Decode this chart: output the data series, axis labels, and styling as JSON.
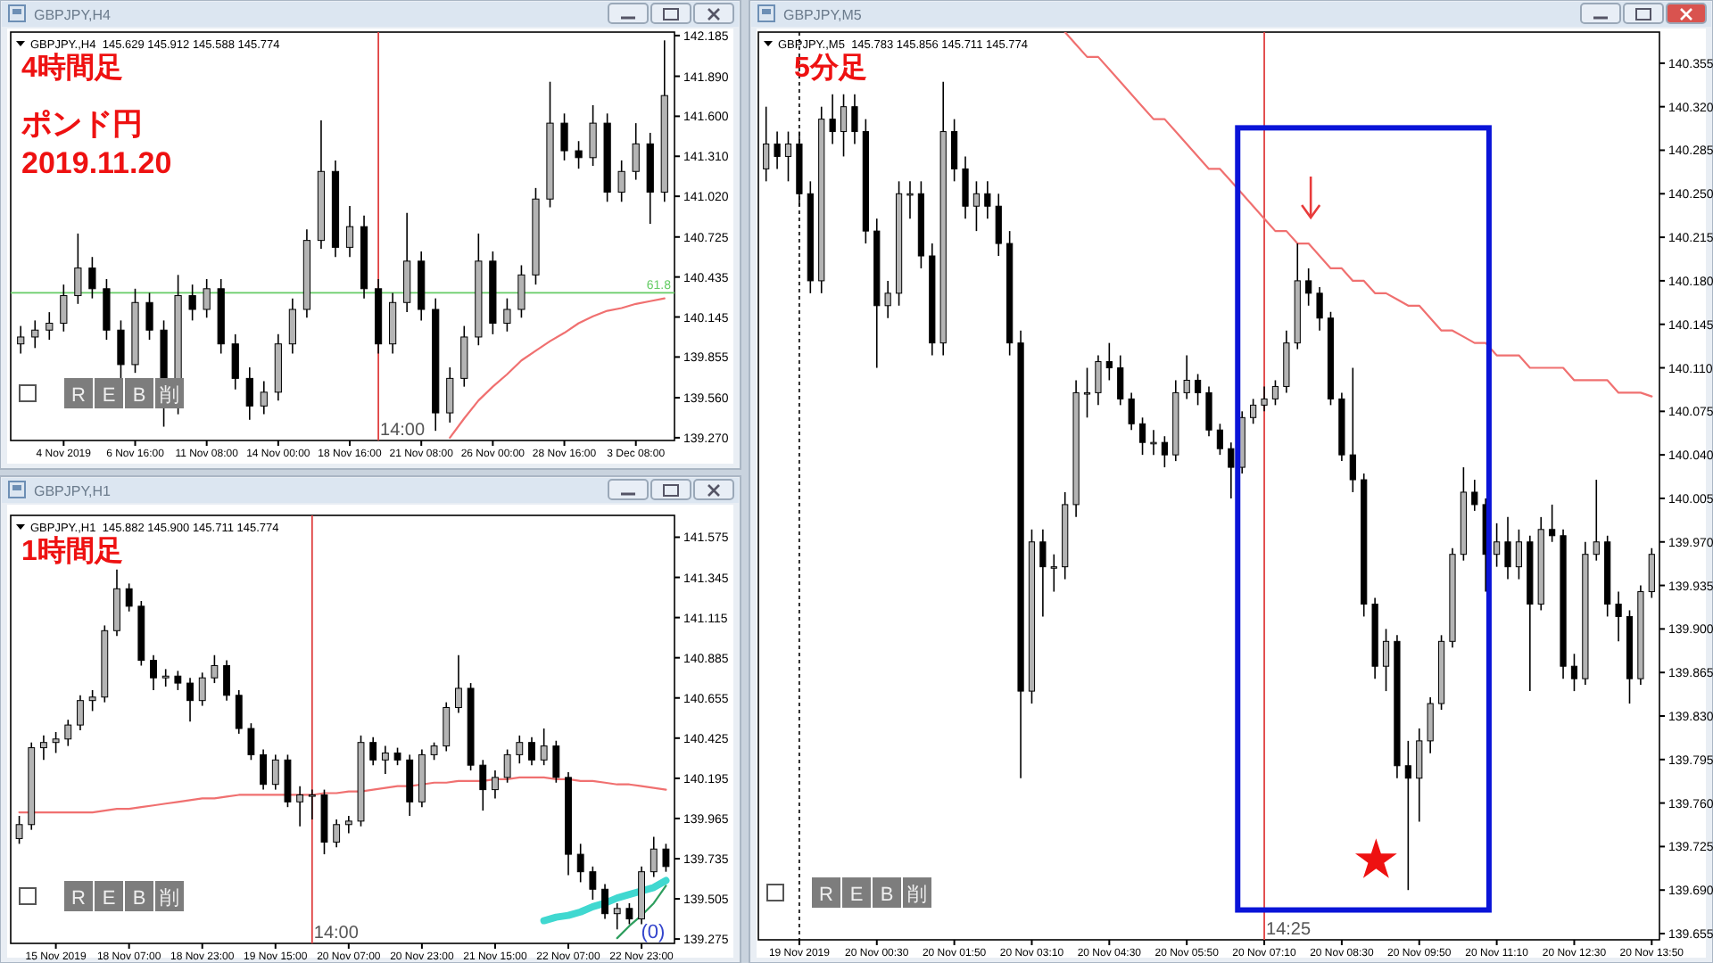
{
  "chart_data": [
    {
      "type": "candlestick",
      "title": "GBPJPY,H4",
      "subtitle": "GBPJPY.,H4  145.629 145.912 145.588 145.774",
      "ohlc": [
        [
          139.95,
          140.08,
          139.88,
          140.0
        ],
        [
          140.0,
          140.12,
          139.92,
          140.05
        ],
        [
          140.05,
          140.18,
          139.98,
          140.1
        ],
        [
          140.1,
          140.38,
          140.04,
          140.3
        ],
        [
          140.3,
          140.75,
          140.24,
          140.5
        ],
        [
          140.5,
          140.58,
          140.28,
          140.35
        ],
        [
          140.35,
          140.42,
          139.98,
          140.05
        ],
        [
          140.05,
          140.12,
          139.68,
          139.8
        ],
        [
          139.8,
          140.35,
          139.74,
          140.25
        ],
        [
          140.25,
          140.32,
          139.98,
          140.05
        ],
        [
          140.05,
          140.12,
          139.35,
          139.5
        ],
        [
          139.5,
          140.45,
          139.44,
          140.3
        ],
        [
          140.3,
          140.38,
          140.12,
          140.2
        ],
        [
          140.2,
          140.42,
          140.14,
          140.35
        ],
        [
          140.35,
          140.42,
          139.88,
          139.95
        ],
        [
          139.95,
          140.02,
          139.62,
          139.7
        ],
        [
          139.7,
          139.78,
          139.4,
          139.5
        ],
        [
          139.5,
          139.68,
          139.44,
          139.6
        ],
        [
          139.6,
          140.02,
          139.54,
          139.95
        ],
        [
          139.95,
          140.28,
          139.88,
          140.2
        ],
        [
          140.2,
          140.78,
          140.14,
          140.7
        ],
        [
          140.7,
          141.57,
          140.64,
          141.2
        ],
        [
          141.2,
          141.28,
          140.58,
          140.65
        ],
        [
          140.65,
          140.95,
          140.58,
          140.8
        ],
        [
          140.8,
          140.88,
          140.28,
          140.35
        ],
        [
          140.35,
          140.42,
          139.88,
          139.95
        ],
        [
          139.95,
          140.32,
          139.88,
          140.25
        ],
        [
          140.25,
          140.9,
          140.18,
          140.55
        ],
        [
          140.55,
          140.62,
          140.12,
          140.2
        ],
        [
          140.2,
          140.28,
          139.32,
          139.45
        ],
        [
          139.45,
          139.78,
          139.38,
          139.7
        ],
        [
          139.7,
          140.08,
          139.64,
          140.0
        ],
        [
          140.0,
          140.75,
          139.94,
          140.55
        ],
        [
          140.55,
          140.62,
          140.02,
          140.1
        ],
        [
          140.1,
          140.28,
          140.04,
          140.2
        ],
        [
          140.2,
          140.52,
          140.14,
          140.45
        ],
        [
          140.45,
          141.08,
          140.38,
          141.0
        ],
        [
          141.0,
          141.85,
          140.94,
          141.55
        ],
        [
          141.55,
          141.62,
          141.28,
          141.35
        ],
        [
          141.35,
          141.42,
          141.22,
          141.3
        ],
        [
          141.3,
          141.68,
          141.24,
          141.55
        ],
        [
          141.55,
          141.62,
          140.98,
          141.05
        ],
        [
          141.05,
          141.28,
          140.98,
          141.2
        ],
        [
          141.2,
          141.55,
          141.14,
          141.4
        ],
        [
          141.4,
          141.48,
          140.82,
          141.05
        ],
        [
          141.05,
          142.15,
          140.98,
          141.75
        ]
      ],
      "series": [
        {
          "type": "line",
          "color": "#f07070",
          "values": [
            null,
            null,
            null,
            null,
            null,
            null,
            null,
            null,
            null,
            null,
            null,
            null,
            null,
            null,
            null,
            null,
            null,
            null,
            null,
            null,
            null,
            null,
            null,
            null,
            null,
            null,
            null,
            null,
            null,
            null,
            139.27,
            139.41,
            139.54,
            139.64,
            139.73,
            139.83,
            139.9,
            139.97,
            140.03,
            140.1,
            140.15,
            140.19,
            140.21,
            140.24,
            140.26,
            140.28
          ]
        }
      ],
      "categories": [
        null,
        null,
        null,
        "4 Nov 2019",
        null,
        null,
        null,
        null,
        "6 Nov 16:00",
        null,
        null,
        null,
        null,
        "11 Nov 08:00",
        null,
        null,
        null,
        null,
        "14 Nov 00:00",
        null,
        null,
        null,
        null,
        "18 Nov 16:00",
        null,
        null,
        null,
        null,
        "21 Nov 08:00",
        null,
        null,
        null,
        null,
        "26 Nov 00:00",
        null,
        null,
        null,
        null,
        "28 Nov 16:00",
        null,
        null,
        null,
        null,
        "3 Dec 08:00",
        null,
        null
      ],
      "ylim": [
        139.25,
        142.21
      ],
      "yticks": [
        {
          "value": 139.27,
          "label": "139.270"
        },
        {
          "value": 139.56,
          "label": "139.560"
        },
        139.855,
        140.145,
        140.435,
        140.725,
        {
          "value": 141.02,
          "label": "141.020"
        },
        {
          "value": 141.31,
          "label": "141.310"
        },
        {
          "value": 141.6,
          "label": "141.600"
        },
        {
          "value": 141.89,
          "label": "141.890"
        },
        142.185
      ],
      "ref_lines": [
        {
          "axis": "y",
          "value": 140.32,
          "color": "#66cc66"
        }
      ],
      "annotations": [
        {
          "text": "61.8",
          "y": 140.32
        },
        "14:00",
        "4時間足",
        "ポンド円",
        "2019.11.20",
        "R",
        "E",
        "B",
        "削"
      ]
    },
    {
      "type": "candlestick",
      "title": "GBPJPY,H1",
      "subtitle": "GBPJPY.,H1  145.882 145.900 145.711 145.774",
      "ohlc": [
        [
          139.85,
          139.98,
          139.82,
          139.93
        ],
        [
          139.93,
          140.4,
          139.9,
          140.37
        ],
        [
          140.37,
          140.44,
          140.3,
          140.4
        ],
        [
          140.4,
          140.46,
          140.34,
          140.42
        ],
        [
          140.42,
          140.53,
          140.38,
          140.5
        ],
        [
          140.5,
          140.67,
          140.47,
          140.64
        ],
        [
          140.64,
          140.7,
          140.58,
          140.66
        ],
        [
          140.66,
          141.07,
          140.63,
          141.04
        ],
        [
          141.04,
          141.39,
          141.01,
          141.28
        ],
        [
          141.28,
          141.31,
          141.15,
          141.18
        ],
        [
          141.18,
          141.21,
          140.84,
          140.87
        ],
        [
          140.87,
          140.9,
          140.7,
          140.77
        ],
        [
          140.77,
          140.82,
          140.72,
          140.78
        ],
        [
          140.78,
          140.81,
          140.7,
          140.74
        ],
        [
          140.74,
          140.77,
          140.52,
          140.64
        ],
        [
          140.64,
          140.8,
          140.61,
          140.77
        ],
        [
          140.77,
          140.9,
          140.74,
          140.84
        ],
        [
          140.84,
          140.87,
          140.64,
          140.67
        ],
        [
          140.67,
          140.7,
          140.45,
          140.48
        ],
        [
          140.48,
          140.51,
          140.3,
          140.33
        ],
        [
          140.33,
          140.36,
          140.13,
          140.16
        ],
        [
          140.16,
          140.33,
          140.13,
          140.3
        ],
        [
          140.3,
          140.33,
          140.03,
          140.06
        ],
        [
          140.06,
          140.15,
          139.92,
          140.1
        ],
        [
          140.1,
          140.13,
          139.96,
          140.1
        ],
        [
          140.1,
          140.13,
          139.76,
          139.83
        ],
        [
          139.83,
          139.96,
          139.8,
          139.93
        ],
        [
          139.93,
          139.98,
          139.88,
          139.95
        ],
        [
          139.95,
          140.44,
          139.92,
          140.4
        ],
        [
          140.4,
          140.43,
          140.27,
          140.3
        ],
        [
          140.3,
          140.38,
          140.22,
          140.34
        ],
        [
          140.34,
          140.37,
          140.27,
          140.3
        ],
        [
          140.3,
          140.33,
          139.98,
          140.06
        ],
        [
          140.06,
          140.36,
          140.03,
          140.33
        ],
        [
          140.33,
          140.4,
          140.3,
          140.38
        ],
        [
          140.38,
          140.63,
          140.35,
          140.6
        ],
        [
          140.6,
          140.9,
          140.57,
          140.71
        ],
        [
          140.71,
          140.74,
          140.24,
          140.27
        ],
        [
          140.27,
          140.3,
          140.01,
          140.13
        ],
        [
          140.13,
          140.24,
          140.08,
          140.2
        ],
        [
          140.2,
          140.36,
          140.17,
          140.33
        ],
        [
          140.33,
          140.44,
          140.28,
          140.4
        ],
        [
          140.4,
          140.43,
          140.27,
          140.3
        ],
        [
          140.3,
          140.48,
          140.27,
          140.38
        ],
        [
          140.38,
          140.41,
          140.17,
          140.2
        ],
        [
          140.2,
          140.23,
          139.64,
          139.76
        ],
        [
          139.76,
          139.82,
          139.6,
          139.66
        ],
        [
          139.66,
          139.69,
          139.5,
          139.56
        ],
        [
          139.56,
          139.59,
          139.39,
          139.42
        ],
        [
          139.42,
          139.48,
          139.33,
          139.45
        ],
        [
          139.45,
          139.48,
          139.36,
          139.39
        ],
        [
          139.39,
          139.69,
          139.36,
          139.66
        ],
        [
          139.66,
          139.86,
          139.63,
          139.79
        ],
        [
          139.79,
          139.82,
          139.66,
          139.69
        ]
      ],
      "series": [
        {
          "type": "line",
          "color": "#f07070",
          "values": [
            140.0,
            140.0,
            140.0,
            140.0,
            140.0,
            140.0,
            140.0,
            140.01,
            140.02,
            140.02,
            140.03,
            140.04,
            140.05,
            140.06,
            140.07,
            140.08,
            140.08,
            140.09,
            140.1,
            140.1,
            140.1,
            140.1,
            140.1,
            140.1,
            140.1,
            140.11,
            140.11,
            140.12,
            140.12,
            140.13,
            140.14,
            140.15,
            140.15,
            140.16,
            140.17,
            140.17,
            140.18,
            140.18,
            140.18,
            140.19,
            140.19,
            140.2,
            140.2,
            140.2,
            140.19,
            140.19,
            140.18,
            140.18,
            140.17,
            140.16,
            140.16,
            140.15,
            140.14,
            140.13
          ]
        },
        {
          "type": "line",
          "color": "#40d8d0",
          "values": [
            null,
            null,
            null,
            null,
            null,
            null,
            null,
            null,
            null,
            null,
            null,
            null,
            null,
            null,
            null,
            null,
            null,
            null,
            null,
            null,
            null,
            null,
            null,
            null,
            null,
            null,
            null,
            null,
            null,
            null,
            null,
            null,
            null,
            null,
            null,
            null,
            null,
            null,
            null,
            null,
            null,
            null,
            null,
            139.38,
            139.4,
            139.41,
            139.43,
            139.46,
            139.48,
            139.51,
            139.53,
            139.55,
            139.57,
            139.61
          ]
        },
        {
          "type": "line",
          "color": "#2e9e5e",
          "values": [
            null,
            null,
            null,
            null,
            null,
            null,
            null,
            null,
            null,
            null,
            null,
            null,
            null,
            null,
            null,
            null,
            null,
            null,
            null,
            null,
            null,
            null,
            null,
            null,
            null,
            null,
            null,
            null,
            null,
            null,
            null,
            null,
            null,
            null,
            null,
            null,
            null,
            null,
            null,
            null,
            null,
            null,
            null,
            null,
            null,
            null,
            null,
            null,
            null,
            139.28,
            139.35,
            139.41,
            139.48,
            139.58
          ]
        }
      ],
      "categories": [
        null,
        null,
        null,
        "15 Nov 2019",
        null,
        null,
        null,
        null,
        null,
        "18 Nov 07:00",
        null,
        null,
        null,
        null,
        null,
        "18 Nov 23:00",
        null,
        null,
        null,
        null,
        null,
        "19 Nov 15:00",
        null,
        null,
        null,
        null,
        null,
        "20 Nov 07:00",
        null,
        null,
        null,
        null,
        null,
        "20 Nov 23:00",
        null,
        null,
        null,
        null,
        null,
        "21 Nov 15:00",
        null,
        null,
        null,
        null,
        null,
        "22 Nov 07:00",
        null,
        null,
        null,
        null,
        null,
        "22 Nov 23:00",
        null,
        null
      ],
      "ylim": [
        139.25,
        141.7
      ],
      "yticks": [
        139.275,
        139.505,
        139.735,
        139.965,
        140.195,
        140.425,
        140.655,
        140.885,
        141.115,
        141.345,
        141.575
      ],
      "annotations": [
        "14:00",
        "1時間足",
        "(0)",
        "R",
        "E",
        "B",
        "削"
      ]
    },
    {
      "type": "candlestick",
      "title": "GBPJPY,M5",
      "subtitle": "GBPJPY.,M5  145.783 145.856 145.711 145.774",
      "ohlc": [
        [
          140.27,
          140.32,
          140.26,
          140.29
        ],
        [
          140.29,
          140.3,
          140.27,
          140.28
        ],
        [
          140.28,
          140.3,
          140.26,
          140.29
        ],
        [
          140.29,
          140.3,
          140.24,
          140.25
        ],
        [
          140.25,
          140.26,
          140.17,
          140.18
        ],
        [
          140.18,
          140.32,
          140.17,
          140.31
        ],
        [
          140.31,
          140.33,
          140.29,
          140.3
        ],
        [
          140.3,
          140.33,
          140.28,
          140.32
        ],
        [
          140.32,
          140.33,
          140.29,
          140.3
        ],
        [
          140.3,
          140.31,
          140.21,
          140.22
        ],
        [
          140.22,
          140.23,
          140.11,
          140.16
        ],
        [
          140.16,
          140.18,
          140.15,
          140.17
        ],
        [
          140.17,
          140.26,
          140.16,
          140.25
        ],
        [
          140.25,
          140.26,
          140.23,
          140.25
        ],
        [
          140.25,
          140.26,
          140.19,
          140.2
        ],
        [
          140.2,
          140.21,
          140.12,
          140.13
        ],
        [
          140.13,
          140.34,
          140.12,
          140.3
        ],
        [
          140.3,
          140.31,
          140.26,
          140.27
        ],
        [
          140.27,
          140.28,
          140.23,
          140.24
        ],
        [
          140.24,
          140.26,
          140.22,
          140.25
        ],
        [
          140.25,
          140.26,
          140.23,
          140.24
        ],
        [
          140.24,
          140.25,
          140.2,
          140.21
        ],
        [
          140.21,
          140.22,
          140.12,
          140.13
        ],
        [
          140.13,
          140.14,
          139.78,
          139.85
        ],
        [
          139.85,
          139.98,
          139.84,
          139.97
        ],
        [
          139.97,
          139.98,
          139.91,
          139.95
        ],
        [
          139.95,
          139.96,
          139.93,
          139.95
        ],
        [
          139.95,
          140.01,
          139.94,
          140.0
        ],
        [
          140.0,
          140.1,
          139.99,
          140.09
        ],
        [
          140.09,
          140.11,
          140.07,
          140.09
        ],
        [
          140.09,
          140.12,
          140.08,
          140.115
        ],
        [
          140.115,
          140.13,
          140.1,
          140.11
        ],
        [
          140.11,
          140.12,
          140.08,
          140.085
        ],
        [
          140.085,
          140.09,
          140.06,
          140.065
        ],
        [
          140.065,
          140.07,
          140.04,
          140.05
        ],
        [
          140.05,
          140.06,
          140.04,
          140.05
        ],
        [
          140.05,
          140.055,
          140.03,
          140.04
        ],
        [
          140.04,
          140.1,
          140.035,
          140.09
        ],
        [
          140.09,
          140.12,
          140.085,
          140.1
        ],
        [
          140.1,
          140.105,
          140.08,
          140.09
        ],
        [
          140.09,
          140.095,
          140.055,
          140.06
        ],
        [
          140.06,
          140.065,
          140.04,
          140.045
        ],
        [
          140.045,
          140.05,
          140.005,
          140.03
        ],
        [
          140.03,
          140.075,
          140.025,
          140.07
        ],
        [
          140.07,
          140.085,
          140.065,
          140.08
        ],
        [
          140.08,
          140.095,
          140.075,
          140.085
        ],
        [
          140.085,
          140.1,
          140.08,
          140.095
        ],
        [
          140.095,
          140.14,
          140.09,
          140.13
        ],
        [
          140.13,
          140.21,
          140.125,
          140.18
        ],
        [
          140.18,
          140.19,
          140.16,
          140.17
        ],
        [
          140.17,
          140.175,
          140.14,
          140.15
        ],
        [
          140.15,
          140.155,
          140.08,
          140.085
        ],
        [
          140.085,
          140.09,
          140.035,
          140.04
        ],
        [
          140.04,
          140.11,
          140.01,
          140.02
        ],
        [
          140.02,
          140.025,
          139.91,
          139.92
        ],
        [
          139.92,
          139.925,
          139.86,
          139.87
        ],
        [
          139.87,
          139.9,
          139.85,
          139.89
        ],
        [
          139.89,
          139.895,
          139.78,
          139.79
        ],
        [
          139.79,
          139.81,
          139.69,
          139.78
        ],
        [
          139.78,
          139.82,
          139.745,
          139.81
        ],
        [
          139.81,
          139.845,
          139.8,
          139.84
        ],
        [
          139.84,
          139.895,
          139.835,
          139.89
        ],
        [
          139.89,
          139.965,
          139.885,
          139.96
        ],
        [
          139.96,
          140.03,
          139.955,
          140.01
        ],
        [
          140.01,
          140.02,
          139.995,
          140.0
        ],
        [
          140.0,
          140.005,
          139.93,
          139.96
        ],
        [
          139.96,
          139.985,
          139.95,
          139.97
        ],
        [
          139.97,
          139.99,
          139.94,
          139.95
        ],
        [
          139.95,
          139.98,
          139.94,
          139.97
        ],
        [
          139.97,
          139.975,
          139.85,
          139.92
        ],
        [
          139.92,
          139.99,
          139.915,
          139.98
        ],
        [
          139.98,
          140.0,
          139.97,
          139.975
        ],
        [
          139.975,
          139.98,
          139.86,
          139.87
        ],
        [
          139.87,
          139.88,
          139.85,
          139.86
        ],
        [
          139.86,
          139.97,
          139.855,
          139.96
        ],
        [
          139.96,
          140.02,
          139.955,
          139.97
        ],
        [
          139.97,
          139.975,
          139.91,
          139.92
        ],
        [
          139.92,
          139.93,
          139.89,
          139.91
        ],
        [
          139.91,
          139.915,
          139.84,
          139.86
        ],
        [
          139.86,
          139.935,
          139.855,
          139.93
        ],
        [
          139.93,
          139.965,
          139.925,
          139.96
        ]
      ],
      "series": [
        {
          "type": "line",
          "color": "#f07070",
          "values": [
            null,
            null,
            null,
            null,
            null,
            null,
            null,
            null,
            null,
            null,
            null,
            null,
            null,
            null,
            null,
            null,
            null,
            null,
            null,
            null,
            null,
            null,
            null,
            null,
            null,
            null,
            null,
            140.38,
            140.37,
            140.36,
            140.36,
            140.35,
            140.34,
            140.33,
            140.32,
            140.31,
            140.31,
            140.3,
            140.29,
            140.28,
            140.27,
            140.27,
            140.26,
            140.25,
            140.24,
            140.23,
            140.22,
            140.22,
            140.21,
            140.21,
            140.2,
            140.19,
            140.19,
            140.18,
            140.18,
            140.17,
            140.17,
            140.165,
            140.16,
            140.16,
            140.15,
            140.14,
            140.14,
            140.135,
            140.13,
            140.13,
            140.12,
            140.12,
            140.12,
            140.11,
            140.11,
            140.11,
            140.11,
            140.1,
            140.1,
            140.1,
            140.1,
            140.09,
            140.09,
            140.09,
            140.087
          ]
        }
      ],
      "categories": [
        null,
        null,
        null,
        "19 Nov 2019",
        null,
        null,
        null,
        null,
        null,
        null,
        "20 Nov 00:30",
        null,
        null,
        null,
        null,
        null,
        null,
        "20 Nov 01:50",
        null,
        null,
        null,
        null,
        null,
        null,
        "20 Nov 03:10",
        null,
        null,
        null,
        null,
        null,
        null,
        "20 Nov 04:30",
        null,
        null,
        null,
        null,
        null,
        null,
        "20 Nov 05:50",
        null,
        null,
        null,
        null,
        null,
        null,
        "20 Nov 07:10",
        null,
        null,
        null,
        null,
        null,
        null,
        "20 Nov 08:30",
        null,
        null,
        null,
        null,
        null,
        null,
        "20 Nov 09:50",
        null,
        null,
        null,
        null,
        null,
        null,
        "20 Nov 11:10",
        null,
        null,
        null,
        null,
        null,
        null,
        "20 Nov 12:30",
        null,
        null,
        null,
        null,
        null,
        null,
        "20 Nov 13:50"
      ],
      "ylim": [
        139.65,
        140.38
      ],
      "yticks": [
        140.355,
        {
          "value": 140.32,
          "label": "140.320"
        },
        140.285,
        {
          "value": 140.25,
          "label": "140.250"
        },
        140.215,
        {
          "value": 140.18,
          "label": "140.180"
        },
        140.145,
        {
          "value": 140.11,
          "label": "140.110"
        },
        140.075,
        {
          "value": 140.04,
          "label": "140.040"
        },
        140.005,
        {
          "value": 139.97,
          "label": "139.970"
        },
        139.935,
        {
          "value": 139.9,
          "label": "139.900"
        },
        139.865,
        {
          "value": 139.83,
          "label": "139.830"
        },
        139.795,
        {
          "value": 139.76,
          "label": "139.760"
        },
        139.725,
        {
          "value": 139.69,
          "label": "139.690"
        },
        139.655
      ],
      "annotations": [
        "14:25",
        "5分足",
        "R",
        "E",
        "B",
        "削"
      ]
    }
  ]
}
